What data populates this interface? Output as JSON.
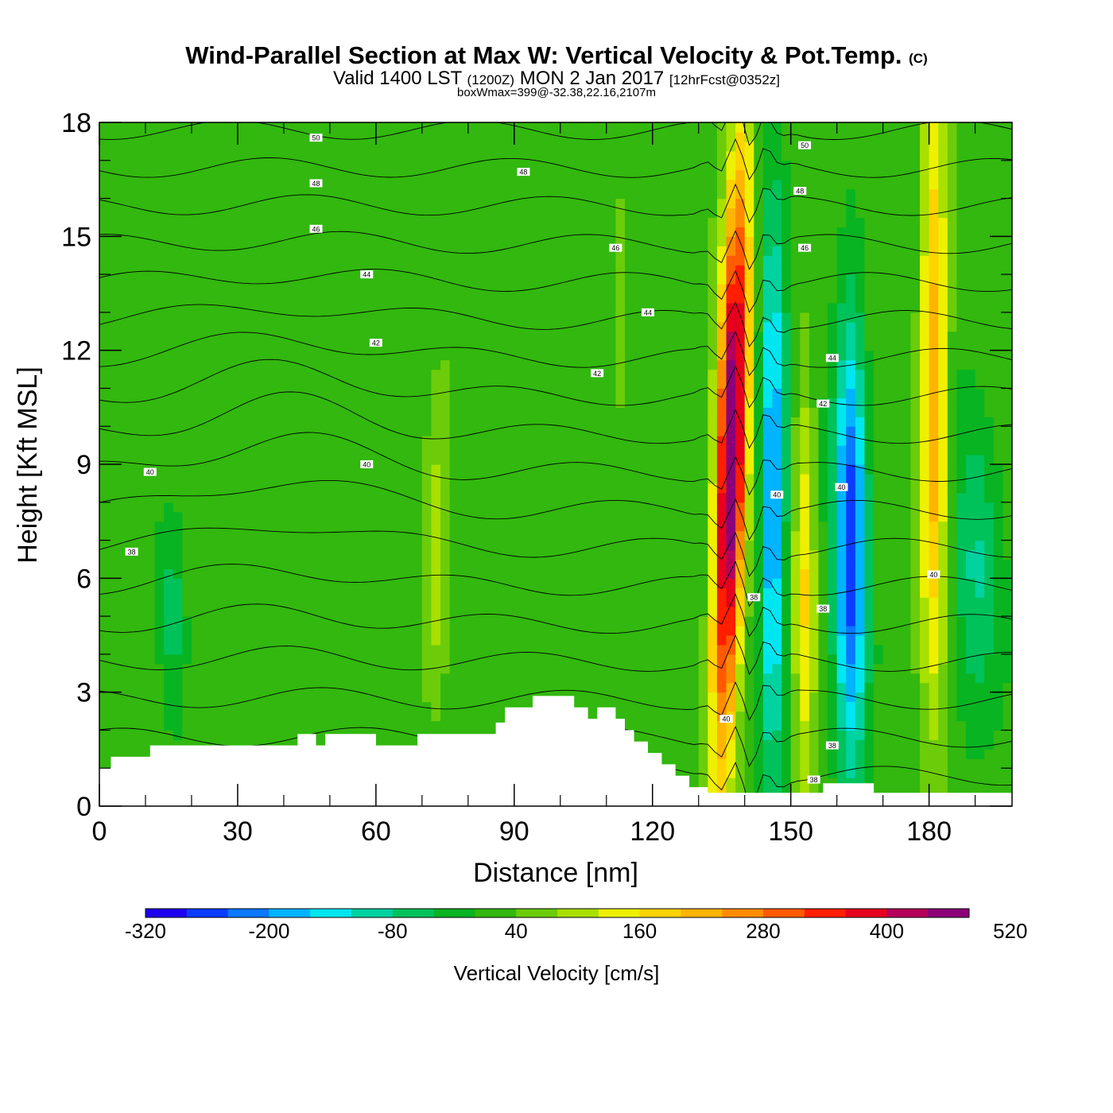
{
  "title": {
    "main": "Wind-Parallel Section at Max W: Vertical Velocity & Pot.Temp.",
    "copyright": "(C)",
    "valid_prefix": "Valid 1400 LST",
    "valid_zulu": "(1200Z)",
    "valid_date": "MON 2 Jan 2017",
    "forecast": "[12hrFcst@0352z]",
    "box_info": "boxWmax=399@-32.38,22.16,2107m"
  },
  "chart_data": {
    "type": "heatmap",
    "xlabel": "Distance [nm]",
    "ylabel": "Height [Kft MSL]",
    "xlim": [
      0,
      198
    ],
    "ylim": [
      0,
      18
    ],
    "x_ticks": [
      "0",
      "30",
      "60",
      "90",
      "120",
      "150",
      "180"
    ],
    "y_ticks": [
      "0",
      "3",
      "6",
      "9",
      "12",
      "15",
      "18"
    ],
    "colorbar": {
      "label": "Vertical Velocity [cm/s]",
      "min": -320,
      "step": 40,
      "tick_labels": [
        "-320",
        "-200",
        "-80",
        "40",
        "160",
        "280",
        "400",
        "520"
      ],
      "colors": [
        "#1e00f0",
        "#0a3cff",
        "#0a78ff",
        "#00b4ff",
        "#00e6f0",
        "#00d2a0",
        "#00c25a",
        "#08b422",
        "#32b80e",
        "#6ccc0a",
        "#a8e000",
        "#eef000",
        "#ffd200",
        "#ffb400",
        "#ff8c00",
        "#ff5a00",
        "#ff1e00",
        "#e6001e",
        "#b4005a",
        "#8c0078"
      ]
    },
    "vertical_velocity_bands": [
      {
        "x_center": 137,
        "value": 480,
        "label": "strong updraft"
      },
      {
        "x_center": 146,
        "value": -240,
        "label": "downdraft"
      },
      {
        "x_center": 153,
        "value": 140,
        "label": "updraft"
      },
      {
        "x_center": 163,
        "value": -280,
        "label": "downdraft"
      },
      {
        "x_center": 181,
        "value": 220,
        "label": "updraft"
      }
    ],
    "terrain_kft": [
      [
        0,
        1.0
      ],
      [
        2.5,
        1.3
      ],
      [
        11,
        1.6
      ],
      [
        43,
        1.9
      ],
      [
        47,
        1.6
      ],
      [
        49,
        1.9
      ],
      [
        60,
        1.6
      ],
      [
        69,
        1.9
      ],
      [
        86,
        2.2
      ],
      [
        88,
        2.6
      ],
      [
        94,
        2.9
      ],
      [
        103,
        2.6
      ],
      [
        106,
        2.3
      ],
      [
        108,
        2.6
      ],
      [
        112,
        2.3
      ],
      [
        114,
        2.0
      ],
      [
        116,
        1.7
      ],
      [
        119,
        1.4
      ],
      [
        122,
        1.1
      ],
      [
        125,
        0.8
      ],
      [
        128,
        0.5
      ],
      [
        132,
        0.35
      ],
      [
        157,
        0.6
      ],
      [
        168,
        0.35
      ],
      [
        198,
        0.35
      ]
    ],
    "potential_temperature_labels": [
      {
        "text": "50",
        "x": 47,
        "y": 17.6
      },
      {
        "text": "48",
        "x": 47,
        "y": 16.4
      },
      {
        "text": "48",
        "x": 92,
        "y": 16.7
      },
      {
        "text": "46",
        "x": 47,
        "y": 15.2
      },
      {
        "text": "44",
        "x": 58,
        "y": 14.0
      },
      {
        "text": "46",
        "x": 112,
        "y": 14.7
      },
      {
        "text": "44",
        "x": 119,
        "y": 13.0
      },
      {
        "text": "42",
        "x": 60,
        "y": 12.2
      },
      {
        "text": "42",
        "x": 108,
        "y": 11.4
      },
      {
        "text": "40",
        "x": 11,
        "y": 8.8
      },
      {
        "text": "40",
        "x": 58,
        "y": 9.0
      },
      {
        "text": "38",
        "x": 7,
        "y": 6.7
      },
      {
        "text": "50",
        "x": 153,
        "y": 17.4
      },
      {
        "text": "48",
        "x": 152,
        "y": 16.2
      },
      {
        "text": "46",
        "x": 153,
        "y": 14.7
      },
      {
        "text": "44",
        "x": 159,
        "y": 11.8
      },
      {
        "text": "42",
        "x": 157,
        "y": 10.6
      },
      {
        "text": "40",
        "x": 147,
        "y": 8.2
      },
      {
        "text": "40",
        "x": 161,
        "y": 8.4
      },
      {
        "text": "38",
        "x": 142,
        "y": 5.5
      },
      {
        "text": "38",
        "x": 157,
        "y": 5.2
      },
      {
        "text": "40",
        "x": 181,
        "y": 6.1
      },
      {
        "text": "40",
        "x": 136,
        "y": 2.3
      },
      {
        "text": "38",
        "x": 159,
        "y": 1.6
      },
      {
        "text": "38",
        "x": 155,
        "y": 0.7
      }
    ]
  }
}
